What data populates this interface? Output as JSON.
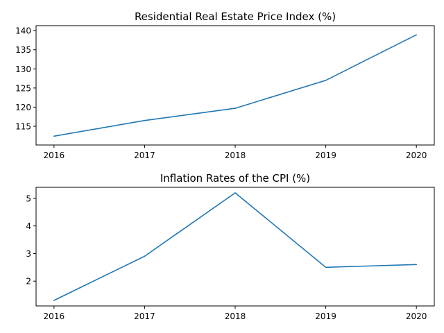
{
  "chart_data": [
    {
      "type": "line",
      "title": "Residential Real Estate Price Index (%)",
      "xlabel": "",
      "ylabel": "",
      "x": [
        "2016",
        "2017",
        "2018",
        "2019",
        "2020"
      ],
      "series": [
        {
          "values": [
            112.4,
            116.5,
            119.7,
            127.0,
            138.9
          ],
          "color": "#1f77b4"
        }
      ],
      "ylim": [
        110.1,
        141.3
      ],
      "yticks": [
        115,
        120,
        125,
        130,
        135,
        140
      ],
      "grid": false,
      "legend": "none"
    },
    {
      "type": "line",
      "title": "Inflation Rates of the CPI (%)",
      "xlabel": "",
      "ylabel": "",
      "x": [
        "2016",
        "2017",
        "2018",
        "2019",
        "2020"
      ],
      "series": [
        {
          "values": [
            1.3,
            2.9,
            5.2,
            2.5,
            2.6
          ],
          "color": "#1f77b4"
        }
      ],
      "ylim": [
        1.1,
        5.4
      ],
      "yticks": [
        2,
        3,
        4,
        5
      ],
      "grid": false,
      "legend": "none"
    }
  ]
}
